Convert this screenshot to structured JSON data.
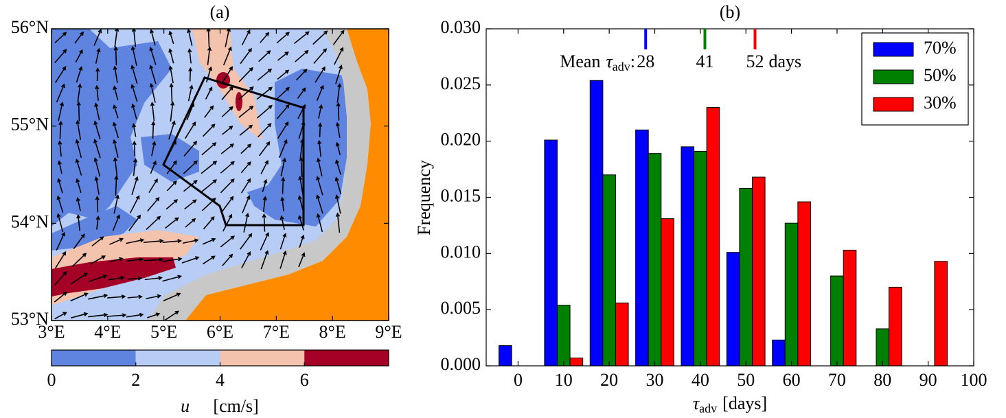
{
  "chart_data": [
    {
      "type": "map",
      "title": "(a)",
      "xlim": [
        3,
        9
      ],
      "ylim": [
        53,
        56
      ],
      "xticks": [
        {
          "value": 3,
          "label": "3°E"
        },
        {
          "value": 4,
          "label": "4°E"
        },
        {
          "value": 5,
          "label": "5°E"
        },
        {
          "value": 6,
          "label": "6°E"
        },
        {
          "value": 7,
          "label": "7°E"
        },
        {
          "value": 8,
          "label": "8°E"
        },
        {
          "value": 9,
          "label": "9°E"
        }
      ],
      "yticks": [
        {
          "value": 53,
          "label": "53°N"
        },
        {
          "value": 54,
          "label": "54°N"
        },
        {
          "value": 55,
          "label": "55°N"
        },
        {
          "value": 56,
          "label": "56°N"
        }
      ],
      "colorbar": {
        "levels": [
          0,
          2,
          4,
          6,
          8
        ],
        "colors": [
          "#5f84e0",
          "#b7cdf5",
          "#f4c3ae",
          "#a50026"
        ],
        "ticks": [
          0,
          2,
          4,
          6
        ],
        "label": {
          "symbol": "u⃗",
          "unit": "[cm/s]"
        }
      }
    },
    {
      "type": "bar",
      "title": "(b)",
      "x": [
        0,
        10,
        20,
        30,
        40,
        50,
        60,
        70,
        80,
        90
      ],
      "series": [
        {
          "name": "70%",
          "color": "#0000ff",
          "values": [
            0.0018,
            0.0201,
            0.0254,
            0.021,
            0.0195,
            0.0101,
            0.0023,
            0,
            0,
            0
          ]
        },
        {
          "name": "50%",
          "color": "#008000",
          "values": [
            0,
            0.0054,
            0.017,
            0.0189,
            0.0191,
            0.0158,
            0.0127,
            0.008,
            0.0033,
            0
          ]
        },
        {
          "name": "30%",
          "color": "#ff0000",
          "values": [
            0,
            0.0007,
            0.0056,
            0.0131,
            0.023,
            0.0168,
            0.0146,
            0.0103,
            0.007,
            0.0093
          ]
        }
      ],
      "xlim": [
        -7,
        100
      ],
      "ylim": [
        0,
        0.03
      ],
      "xticks": [
        0,
        10,
        20,
        30,
        40,
        50,
        60,
        70,
        80,
        90,
        100
      ],
      "yticks": [
        {
          "value": 0,
          "label": "0.000"
        },
        {
          "value": 0.005,
          "label": "0.005"
        },
        {
          "value": 0.01,
          "label": "0.010"
        },
        {
          "value": 0.015,
          "label": "0.015"
        },
        {
          "value": 0.02,
          "label": "0.020"
        },
        {
          "value": 0.025,
          "label": "0.025"
        },
        {
          "value": 0.03,
          "label": "0.030"
        }
      ],
      "ylabel": "Frequency",
      "xlabel": {
        "symbol": "τ",
        "subscript": "adv",
        "unit": "[days]"
      },
      "mean_label": {
        "text": "Mean",
        "symbol": "τ",
        "subscript": "adv",
        "suffix": ":"
      },
      "means": [
        {
          "value": 28,
          "color": "#0000ff"
        },
        {
          "value": 41,
          "color": "#008000"
        },
        {
          "value": 52,
          "color": "#ff0000"
        }
      ],
      "means_unit": "days",
      "legend": "upper right"
    }
  ]
}
